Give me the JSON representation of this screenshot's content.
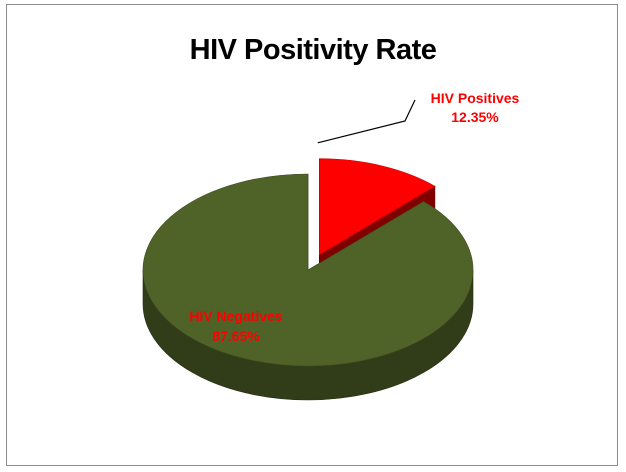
{
  "chart_data": {
    "type": "pie",
    "title": "HIV Positivity Rate",
    "categories": [
      "HIV Positives",
      "HIV Negatives"
    ],
    "values": [
      12.35,
      87.65
    ],
    "labels": [
      "HIV Positives\n12.35%",
      "HIV Negatives\n87.65%"
    ],
    "colors": {
      "HIV Positives": "#ff0000",
      "HIV Negatives": "#4f6228"
    },
    "exploded": [
      "HIV Positives"
    ],
    "style": "3d-pie",
    "legend": "none"
  },
  "colors": {
    "positive_label": "#ff0000",
    "negative_label": "#ff0000",
    "positive_side": "#a80000",
    "negative_side": "#2f3b17"
  }
}
